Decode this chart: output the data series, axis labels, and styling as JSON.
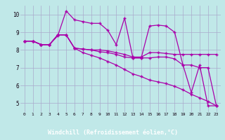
{
  "background_color": "#c0e8e8",
  "grid_color": "#aaaacc",
  "line_color": "#aa00aa",
  "xlabel": "Windchill (Refroidissement éolien,°C)",
  "xlabel_bg": "#6666aa",
  "xlabel_color": "#ffffff",
  "xlim": [
    -0.5,
    23.5
  ],
  "ylim": [
    4.5,
    10.5
  ],
  "yticks": [
    5,
    6,
    7,
    8,
    9,
    10
  ],
  "xticks": [
    0,
    1,
    2,
    3,
    4,
    5,
    6,
    7,
    8,
    9,
    10,
    11,
    12,
    13,
    14,
    15,
    16,
    17,
    18,
    19,
    20,
    21,
    22,
    23
  ],
  "series1": [
    8.5,
    8.5,
    8.3,
    8.3,
    8.8,
    10.2,
    9.7,
    9.6,
    9.5,
    9.5,
    9.1,
    8.3,
    9.8,
    7.55,
    7.55,
    9.35,
    9.4,
    9.35,
    9.0,
    7.15,
    5.6,
    7.15,
    4.85,
    4.85
  ],
  "series2": [
    8.5,
    8.5,
    8.3,
    8.3,
    8.85,
    8.85,
    8.1,
    8.05,
    8.0,
    8.0,
    7.95,
    7.85,
    7.75,
    7.6,
    7.6,
    7.85,
    7.85,
    7.8,
    7.75,
    7.75,
    7.75,
    7.75,
    7.75,
    7.75
  ],
  "series3": [
    8.5,
    8.5,
    8.3,
    8.3,
    8.85,
    8.85,
    8.1,
    8.05,
    8.0,
    7.9,
    7.85,
    7.75,
    7.6,
    7.55,
    7.55,
    7.55,
    7.6,
    7.6,
    7.5,
    7.15,
    7.15,
    7.0,
    7.0,
    4.85
  ],
  "series4": [
    8.5,
    8.5,
    8.3,
    8.3,
    8.85,
    8.85,
    8.1,
    7.85,
    7.7,
    7.55,
    7.35,
    7.15,
    6.9,
    6.65,
    6.5,
    6.3,
    6.2,
    6.1,
    5.95,
    5.75,
    5.5,
    5.3,
    5.1,
    4.85
  ]
}
